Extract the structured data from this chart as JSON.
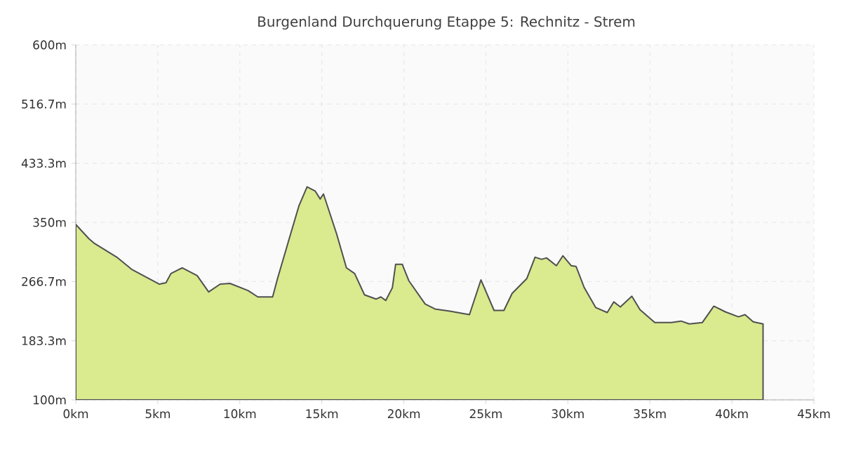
{
  "chart_data": {
    "type": "area",
    "title": "Burgenland Durchquerung Etappe 5: Rechnitz - Strem",
    "x": [
      0,
      0.8,
      1.1,
      2.5,
      3.4,
      5.1,
      5.5,
      5.8,
      6.5,
      7.4,
      8.1,
      8.8,
      9.4,
      10.5,
      11.1,
      12.0,
      12.3,
      13.1,
      13.6,
      14.1,
      14.6,
      14.9,
      15.1,
      15.9,
      16.5,
      17.0,
      17.6,
      18.3,
      18.6,
      18.9,
      19.3,
      19.5,
      19.9,
      20.3,
      21.3,
      21.9,
      22.8,
      24.0,
      24.7,
      25.5,
      26.1,
      26.6,
      27.5,
      28.0,
      28.4,
      28.7,
      29.3,
      29.7,
      30.2,
      30.5,
      31.0,
      31.7,
      32.4,
      32.8,
      33.2,
      33.9,
      34.4,
      35.3,
      36.3,
      36.9,
      37.4,
      38.2,
      38.9,
      39.6,
      40.4,
      40.8,
      41.3,
      41.9
    ],
    "values": [
      347,
      327,
      321,
      301,
      284,
      263,
      265,
      278,
      286,
      275,
      252,
      263,
      264,
      254,
      245,
      245,
      271,
      334,
      373,
      400,
      394,
      383,
      390,
      334,
      286,
      278,
      248,
      242,
      245,
      240,
      258,
      291,
      291,
      268,
      235,
      228,
      225,
      220,
      269,
      226,
      226,
      250,
      271,
      301,
      298,
      300,
      289,
      303,
      289,
      288,
      258,
      230,
      223,
      238,
      231,
      246,
      227,
      209,
      209,
      211,
      207,
      209,
      232,
      224,
      217,
      220,
      210,
      207
    ],
    "color": "#d9ea8f",
    "xlim": [
      0,
      45
    ],
    "ylim": [
      100,
      600
    ],
    "xticks": [
      {
        "value": 0,
        "label": "0km"
      },
      {
        "value": 5,
        "label": "5km"
      },
      {
        "value": 10,
        "label": "10km"
      },
      {
        "value": 15,
        "label": "15km"
      },
      {
        "value": 20,
        "label": "20km"
      },
      {
        "value": 25,
        "label": "25km"
      },
      {
        "value": 30,
        "label": "30km"
      },
      {
        "value": 35,
        "label": "35km"
      },
      {
        "value": 40,
        "label": "40km"
      },
      {
        "value": 45,
        "label": "45km"
      }
    ],
    "yticks": [
      {
        "value": 100,
        "label": "100m"
      },
      {
        "value": 183.3,
        "label": "183.3m"
      },
      {
        "value": 266.7,
        "label": "266.7m"
      },
      {
        "value": 350,
        "label": "350m"
      },
      {
        "value": 433.3,
        "label": "433.3m"
      },
      {
        "value": 516.7,
        "label": "516.7m"
      },
      {
        "value": 600,
        "label": "600m"
      }
    ],
    "grid": true
  }
}
